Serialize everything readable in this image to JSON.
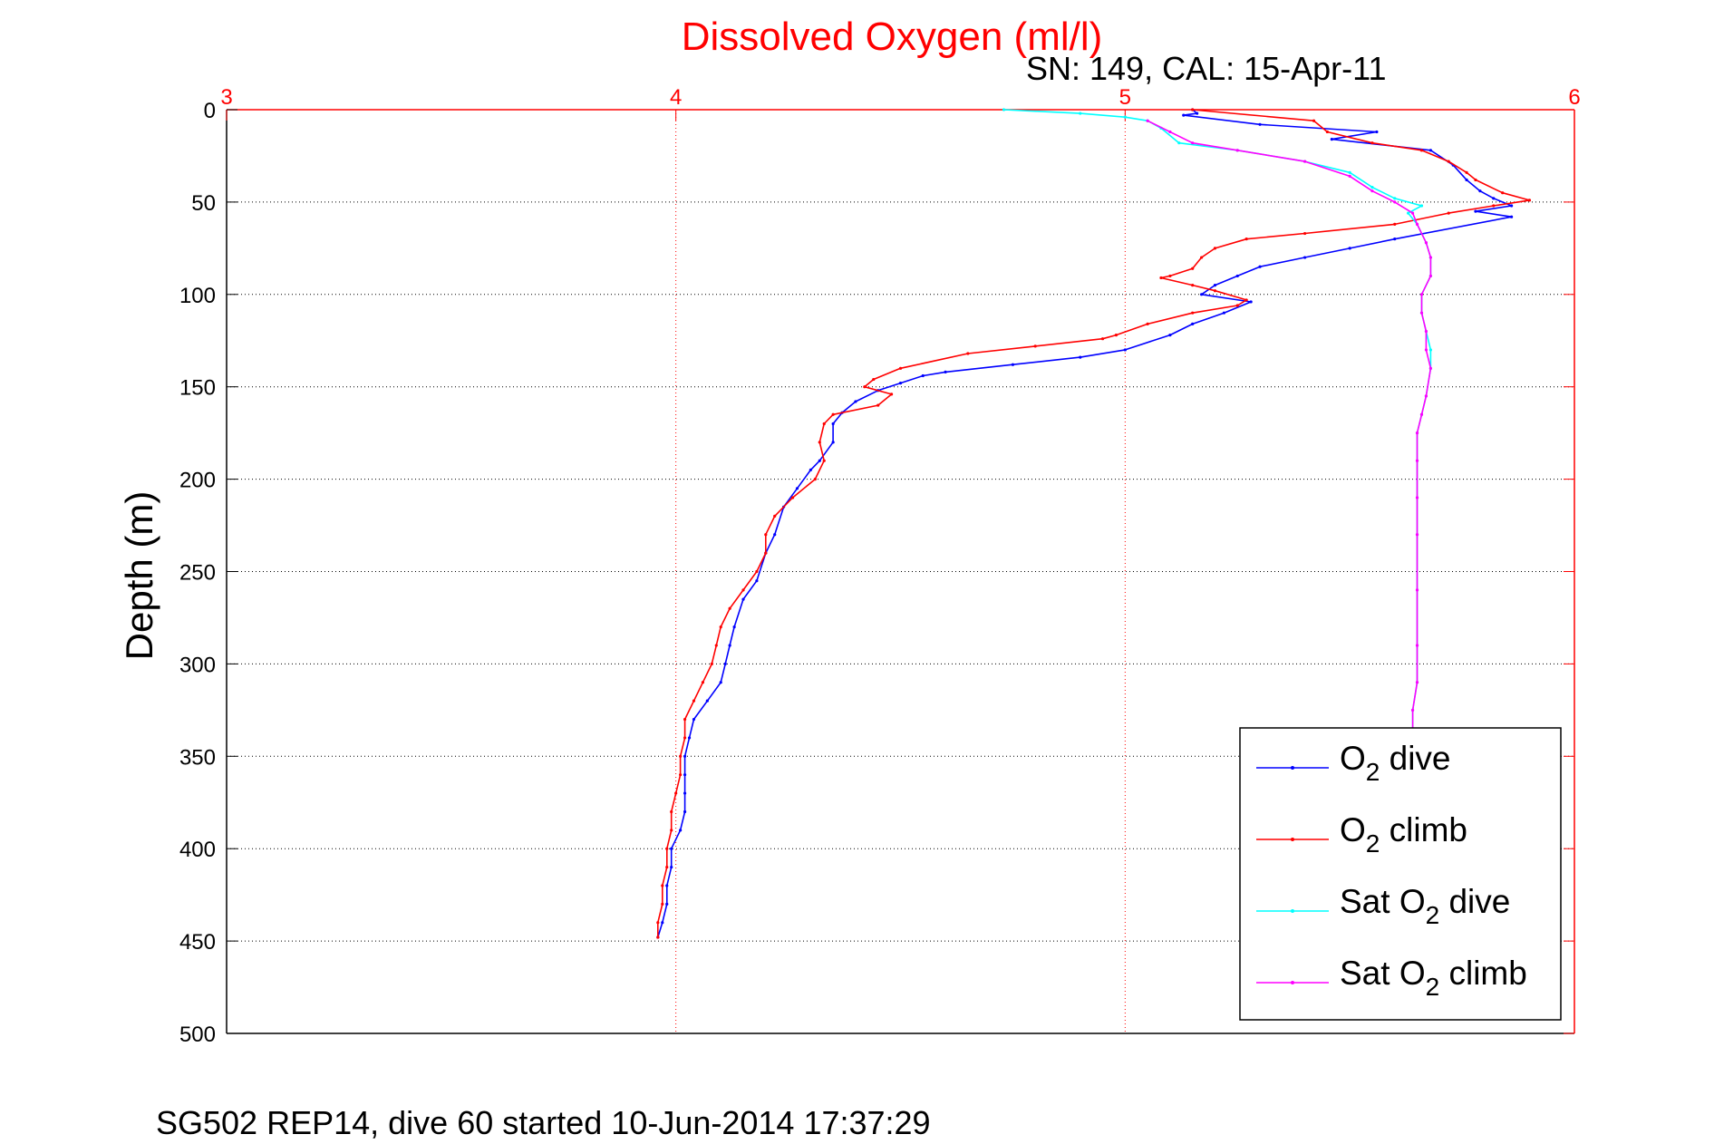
{
  "chart_data": {
    "type": "line",
    "title": "Dissolved Oxygen (ml/l)",
    "subtitle": "SN: 149, CAL: 15-Apr-11",
    "xlabel": "",
    "ylabel": "Depth (m)",
    "footer": "SG502 REP14, dive 60 started 10-Jun-2014 17:37:29",
    "xlim": [
      3,
      6
    ],
    "ylim": [
      0,
      500
    ],
    "y_reversed": true,
    "x_axis_position": "top",
    "x_ticks": [
      "3",
      "4",
      "5",
      "6"
    ],
    "y_ticks": [
      "0",
      "50",
      "100",
      "150",
      "200",
      "250",
      "300",
      "350",
      "400",
      "450",
      "500"
    ],
    "grid": true,
    "legend_position": "bottom-right",
    "colors": {
      "title": "#ff0000",
      "x_axis": "#ff0000",
      "y_axis": "#000000"
    },
    "series": [
      {
        "name": "O2 dive",
        "legend": {
          "base": "O",
          "sub": "2",
          "suffix": " dive",
          "prefix": ""
        },
        "color": "#0000ff",
        "points": [
          [
            5.15,
            0
          ],
          [
            5.16,
            2
          ],
          [
            5.13,
            3
          ],
          [
            5.3,
            8
          ],
          [
            5.56,
            12
          ],
          [
            5.46,
            16
          ],
          [
            5.68,
            22
          ],
          [
            5.73,
            30
          ],
          [
            5.76,
            38
          ],
          [
            5.79,
            44
          ],
          [
            5.82,
            48
          ],
          [
            5.86,
            52
          ],
          [
            5.78,
            55
          ],
          [
            5.86,
            58
          ],
          [
            5.6,
            70
          ],
          [
            5.5,
            75
          ],
          [
            5.4,
            80
          ],
          [
            5.3,
            85
          ],
          [
            5.25,
            90
          ],
          [
            5.2,
            95
          ],
          [
            5.17,
            100
          ],
          [
            5.28,
            104
          ],
          [
            5.22,
            110
          ],
          [
            5.15,
            116
          ],
          [
            5.1,
            122
          ],
          [
            5.0,
            130
          ],
          [
            4.9,
            134
          ],
          [
            4.75,
            138
          ],
          [
            4.6,
            142
          ],
          [
            4.55,
            144
          ],
          [
            4.5,
            148
          ],
          [
            4.45,
            152
          ],
          [
            4.4,
            158
          ],
          [
            4.37,
            164
          ],
          [
            4.35,
            170
          ],
          [
            4.35,
            180
          ],
          [
            4.32,
            190
          ],
          [
            4.3,
            195
          ],
          [
            4.27,
            205
          ],
          [
            4.24,
            215
          ],
          [
            4.22,
            230
          ],
          [
            4.2,
            240
          ],
          [
            4.18,
            255
          ],
          [
            4.15,
            265
          ],
          [
            4.13,
            280
          ],
          [
            4.12,
            290
          ],
          [
            4.11,
            300
          ],
          [
            4.1,
            310
          ],
          [
            4.07,
            320
          ],
          [
            4.04,
            330
          ],
          [
            4.03,
            340
          ],
          [
            4.02,
            350
          ],
          [
            4.02,
            360
          ],
          [
            4.02,
            370
          ],
          [
            4.02,
            380
          ],
          [
            4.01,
            390
          ],
          [
            3.99,
            400
          ],
          [
            3.99,
            410
          ],
          [
            3.98,
            420
          ],
          [
            3.98,
            430
          ],
          [
            3.97,
            440
          ],
          [
            3.96,
            448
          ]
        ]
      },
      {
        "name": "O2 climb",
        "legend": {
          "base": "O",
          "sub": "2",
          "suffix": " climb",
          "prefix": ""
        },
        "color": "#ff0000",
        "points": [
          [
            5.15,
            0
          ],
          [
            5.42,
            6
          ],
          [
            5.45,
            12
          ],
          [
            5.55,
            18
          ],
          [
            5.66,
            22
          ],
          [
            5.72,
            28
          ],
          [
            5.76,
            34
          ],
          [
            5.78,
            38
          ],
          [
            5.84,
            45
          ],
          [
            5.9,
            49
          ],
          [
            5.82,
            52
          ],
          [
            5.72,
            56
          ],
          [
            5.6,
            62
          ],
          [
            5.4,
            67
          ],
          [
            5.27,
            70
          ],
          [
            5.2,
            75
          ],
          [
            5.17,
            80
          ],
          [
            5.15,
            86
          ],
          [
            5.1,
            90
          ],
          [
            5.08,
            91
          ],
          [
            5.15,
            95
          ],
          [
            5.2,
            98
          ],
          [
            5.27,
            103
          ],
          [
            5.25,
            106
          ],
          [
            5.15,
            110
          ],
          [
            5.05,
            116
          ],
          [
            4.98,
            122
          ],
          [
            4.95,
            124
          ],
          [
            4.8,
            128
          ],
          [
            4.65,
            132
          ],
          [
            4.5,
            140
          ],
          [
            4.44,
            146
          ],
          [
            4.42,
            150
          ],
          [
            4.48,
            154
          ],
          [
            4.45,
            160
          ],
          [
            4.35,
            165
          ],
          [
            4.33,
            170
          ],
          [
            4.32,
            180
          ],
          [
            4.33,
            190
          ],
          [
            4.31,
            200
          ],
          [
            4.26,
            210
          ],
          [
            4.22,
            220
          ],
          [
            4.2,
            230
          ],
          [
            4.2,
            240
          ],
          [
            4.18,
            250
          ],
          [
            4.15,
            260
          ],
          [
            4.12,
            270
          ],
          [
            4.1,
            280
          ],
          [
            4.09,
            290
          ],
          [
            4.08,
            300
          ],
          [
            4.06,
            310
          ],
          [
            4.04,
            320
          ],
          [
            4.02,
            330
          ],
          [
            4.02,
            340
          ],
          [
            4.01,
            350
          ],
          [
            4.01,
            360
          ],
          [
            4.0,
            370
          ],
          [
            3.99,
            380
          ],
          [
            3.99,
            390
          ],
          [
            3.98,
            400
          ],
          [
            3.98,
            410
          ],
          [
            3.97,
            420
          ],
          [
            3.97,
            430
          ],
          [
            3.96,
            440
          ],
          [
            3.96,
            448
          ]
        ]
      },
      {
        "name": "Sat O2 dive",
        "legend": {
          "base": "O",
          "sub": "2",
          "suffix": " dive",
          "prefix": "Sat "
        },
        "color": "#00ffff",
        "points": [
          [
            4.73,
            0
          ],
          [
            4.9,
            2
          ],
          [
            5.0,
            4
          ],
          [
            5.05,
            6
          ],
          [
            5.08,
            10
          ],
          [
            5.12,
            18
          ],
          [
            5.25,
            22
          ],
          [
            5.4,
            28
          ],
          [
            5.5,
            34
          ],
          [
            5.55,
            42
          ],
          [
            5.6,
            48
          ],
          [
            5.66,
            52
          ],
          [
            5.63,
            56
          ],
          [
            5.65,
            62
          ],
          [
            5.67,
            72
          ],
          [
            5.68,
            80
          ],
          [
            5.68,
            90
          ],
          [
            5.66,
            100
          ],
          [
            5.66,
            110
          ],
          [
            5.67,
            120
          ],
          [
            5.68,
            130
          ],
          [
            5.68,
            140
          ],
          [
            5.67,
            155
          ],
          [
            5.66,
            165
          ],
          [
            5.65,
            175
          ],
          [
            5.65,
            190
          ],
          [
            5.65,
            210
          ],
          [
            5.65,
            230
          ],
          [
            5.65,
            260
          ],
          [
            5.65,
            290
          ],
          [
            5.65,
            310
          ],
          [
            5.64,
            325
          ],
          [
            5.64,
            335
          ]
        ]
      },
      {
        "name": "Sat O2 climb",
        "legend": {
          "base": "O",
          "sub": "2",
          "suffix": " climb",
          "prefix": "Sat "
        },
        "color": "#ff00ff",
        "points": [
          [
            5.05,
            6
          ],
          [
            5.1,
            12
          ],
          [
            5.15,
            18
          ],
          [
            5.25,
            22
          ],
          [
            5.4,
            28
          ],
          [
            5.5,
            36
          ],
          [
            5.55,
            44
          ],
          [
            5.6,
            50
          ],
          [
            5.64,
            56
          ],
          [
            5.65,
            62
          ],
          [
            5.67,
            72
          ],
          [
            5.68,
            80
          ],
          [
            5.68,
            90
          ],
          [
            5.66,
            100
          ],
          [
            5.66,
            110
          ],
          [
            5.67,
            120
          ],
          [
            5.67,
            130
          ],
          [
            5.68,
            140
          ],
          [
            5.67,
            155
          ],
          [
            5.66,
            165
          ],
          [
            5.65,
            175
          ],
          [
            5.65,
            190
          ],
          [
            5.65,
            210
          ],
          [
            5.65,
            230
          ],
          [
            5.65,
            260
          ],
          [
            5.65,
            290
          ],
          [
            5.65,
            310
          ],
          [
            5.64,
            325
          ],
          [
            5.64,
            335
          ]
        ]
      }
    ]
  }
}
